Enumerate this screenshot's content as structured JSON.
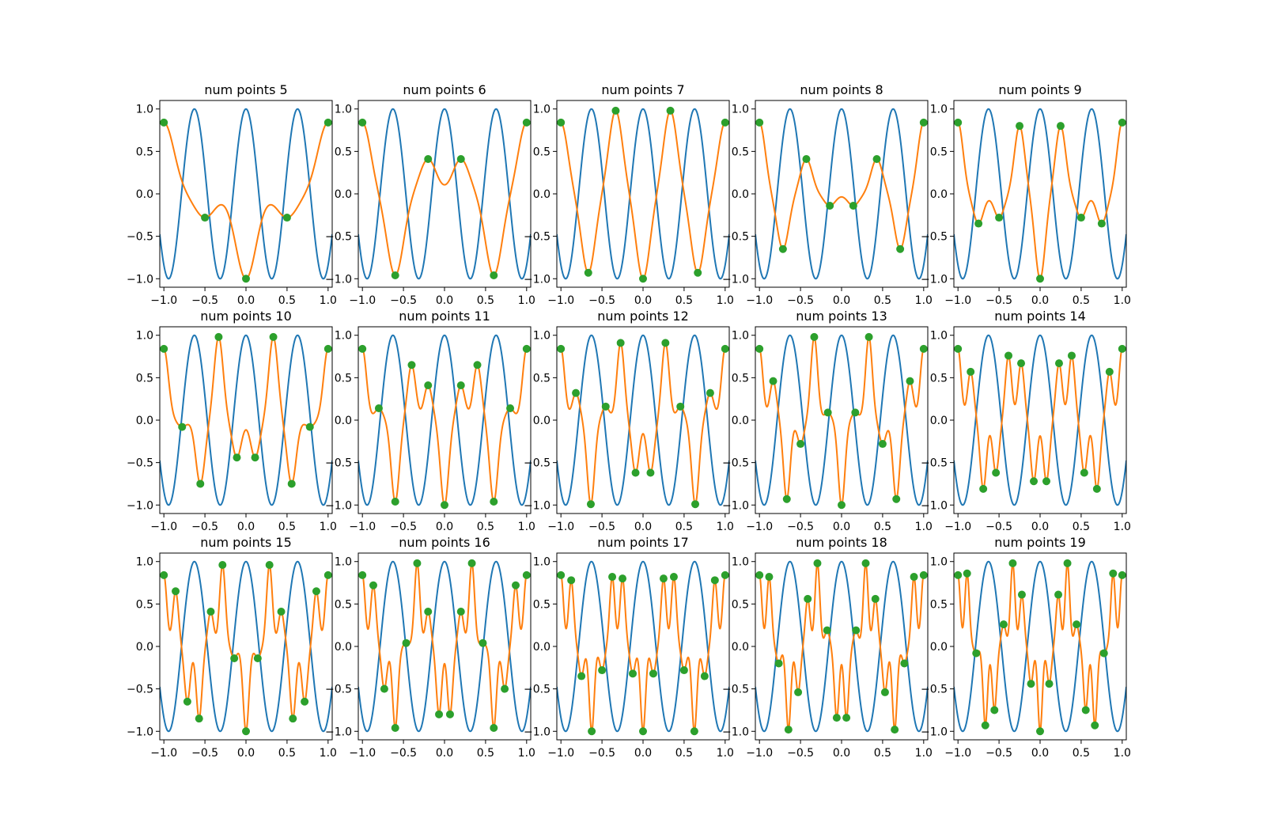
{
  "colors": {
    "target_function": "#1f77b4",
    "interpolant": "#ff7f0e",
    "samples": "#2ca02c",
    "axes": "#000000",
    "background": "#ffffff"
  },
  "chart_data": [
    {
      "type": "line",
      "title": "num points 5",
      "series": [
        {
          "kind": "target-function"
        },
        {
          "kind": "interpolant"
        },
        {
          "kind": "sample-points"
        }
      ],
      "samples": {
        "x": [
          -1,
          -0.5,
          0,
          0.5,
          1
        ],
        "y": [
          0.84,
          -0.28,
          -1,
          -0.28,
          0.84
        ]
      },
      "xlim": [
        -1.05,
        1.05
      ],
      "ylim": [
        -1.1,
        1.1
      ],
      "xticks": [
        "−1.0",
        "−0.5",
        "0.0",
        "0.5",
        "1.0"
      ],
      "yticks": [
        "−1.0",
        "−0.5",
        "0.0",
        "0.5",
        "1.0"
      ]
    },
    {
      "type": "line",
      "title": "num points 6",
      "series": [
        {
          "kind": "target-function"
        },
        {
          "kind": "interpolant"
        },
        {
          "kind": "sample-points"
        }
      ],
      "samples": {
        "x": [
          -1,
          -0.6,
          -0.2,
          0.2,
          0.6,
          1
        ],
        "y": [
          0.84,
          -0.96,
          0.41,
          0.41,
          -0.96,
          0.84
        ]
      },
      "xlim": [
        -1.05,
        1.05
      ],
      "ylim": [
        -1.1,
        1.1
      ],
      "xticks": [
        "−1.0",
        "−0.5",
        "0.0",
        "0.5",
        "1.0"
      ],
      "yticks": [
        "−1.0",
        "−0.5",
        "0.0",
        "0.5",
        "1.0"
      ]
    },
    {
      "type": "line",
      "title": "num points 7",
      "series": [
        {
          "kind": "target-function"
        },
        {
          "kind": "interpolant"
        },
        {
          "kind": "sample-points"
        }
      ],
      "samples": {
        "x": [
          -1,
          -0.667,
          -0.333,
          0,
          0.333,
          0.667,
          1
        ],
        "y": [
          0.84,
          -0.93,
          0.98,
          -1,
          0.98,
          -0.93,
          0.84
        ]
      },
      "xlim": [
        -1.05,
        1.05
      ],
      "ylim": [
        -1.1,
        1.1
      ],
      "xticks": [
        "−1.0",
        "−0.5",
        "0.0",
        "0.5",
        "1.0"
      ],
      "yticks": [
        "−1.0",
        "−0.5",
        "0.0",
        "0.5",
        "1.0"
      ]
    },
    {
      "type": "line",
      "title": "num points 8",
      "series": [
        {
          "kind": "target-function"
        },
        {
          "kind": "interpolant"
        },
        {
          "kind": "sample-points"
        }
      ],
      "samples": {
        "x": [
          -1,
          -0.714,
          -0.429,
          -0.143,
          0.143,
          0.429,
          0.714,
          1
        ],
        "y": [
          0.84,
          -0.65,
          0.41,
          -0.14,
          -0.14,
          0.41,
          -0.65,
          0.84
        ]
      },
      "xlim": [
        -1.05,
        1.05
      ],
      "ylim": [
        -1.1,
        1.1
      ],
      "xticks": [
        "−1.0",
        "−0.5",
        "0.0",
        "0.5",
        "1.0"
      ],
      "yticks": [
        "−1.0",
        "−0.5",
        "0.0",
        "0.5",
        "1.0"
      ]
    },
    {
      "type": "line",
      "title": "num points 9",
      "series": [
        {
          "kind": "target-function"
        },
        {
          "kind": "interpolant"
        },
        {
          "kind": "sample-points"
        }
      ],
      "samples": {
        "x": [
          -1,
          -0.75,
          -0.5,
          -0.25,
          0,
          0.25,
          0.5,
          0.75,
          1
        ],
        "y": [
          0.84,
          -0.35,
          -0.28,
          0.8,
          -1,
          0.8,
          -0.28,
          -0.35,
          0.84
        ]
      },
      "xlim": [
        -1.05,
        1.05
      ],
      "ylim": [
        -1.1,
        1.1
      ],
      "xticks": [
        "−1.0",
        "−0.5",
        "0.0",
        "0.5",
        "1.0"
      ],
      "yticks": [
        "−1.0",
        "−0.5",
        "0.0",
        "0.5",
        "1.0"
      ]
    },
    {
      "type": "line",
      "title": "num points 10",
      "series": [
        {
          "kind": "target-function"
        },
        {
          "kind": "interpolant"
        },
        {
          "kind": "sample-points"
        }
      ],
      "samples": {
        "x": [
          -1,
          -0.778,
          -0.556,
          -0.333,
          -0.111,
          0.111,
          0.333,
          0.556,
          0.778,
          1
        ],
        "y": [
          0.84,
          -0.08,
          -0.75,
          0.98,
          -0.44,
          -0.44,
          0.98,
          -0.75,
          -0.08,
          0.84
        ]
      },
      "xlim": [
        -1.05,
        1.05
      ],
      "ylim": [
        -1.1,
        1.1
      ],
      "xticks": [
        "−1.0",
        "−0.5",
        "0.0",
        "0.5",
        "1.0"
      ],
      "yticks": [
        "−1.0",
        "−0.5",
        "0.0",
        "0.5",
        "1.0"
      ]
    },
    {
      "type": "line",
      "title": "num points 11",
      "series": [
        {
          "kind": "target-function"
        },
        {
          "kind": "interpolant"
        },
        {
          "kind": "sample-points"
        }
      ],
      "samples": {
        "x": [
          -1,
          -0.8,
          -0.6,
          -0.4,
          -0.2,
          0,
          0.2,
          0.4,
          0.6,
          0.8,
          1
        ],
        "y": [
          0.84,
          0.14,
          -0.96,
          0.65,
          0.41,
          -1,
          0.41,
          0.65,
          -0.96,
          0.14,
          0.84
        ]
      },
      "xlim": [
        -1.05,
        1.05
      ],
      "ylim": [
        -1.1,
        1.1
      ],
      "xticks": [
        "−1.0",
        "−0.5",
        "0.0",
        "0.5",
        "1.0"
      ],
      "yticks": [
        "−1.0",
        "−0.5",
        "0.0",
        "0.5",
        "1.0"
      ]
    },
    {
      "type": "line",
      "title": "num points 12",
      "series": [
        {
          "kind": "target-function"
        },
        {
          "kind": "interpolant"
        },
        {
          "kind": "sample-points"
        }
      ],
      "samples": {
        "x": [
          -1,
          -0.818,
          -0.636,
          -0.455,
          -0.273,
          -0.091,
          0.091,
          0.273,
          0.455,
          0.636,
          0.818,
          1
        ],
        "y": [
          0.84,
          0.32,
          -0.99,
          0.16,
          0.91,
          -0.62,
          -0.62,
          0.91,
          0.16,
          -0.99,
          0.32,
          0.84
        ]
      },
      "xlim": [
        -1.05,
        1.05
      ],
      "ylim": [
        -1.1,
        1.1
      ],
      "xticks": [
        "−1.0",
        "−0.5",
        "0.0",
        "0.5",
        "1.0"
      ],
      "yticks": [
        "−1.0",
        "−0.5",
        "0.0",
        "0.5",
        "1.0"
      ]
    },
    {
      "type": "line",
      "title": "num points 13",
      "series": [
        {
          "kind": "target-function"
        },
        {
          "kind": "interpolant"
        },
        {
          "kind": "sample-points"
        }
      ],
      "samples": {
        "x": [
          -1,
          -0.833,
          -0.667,
          -0.5,
          -0.333,
          -0.167,
          0,
          0.167,
          0.333,
          0.5,
          0.667,
          0.833,
          1
        ],
        "y": [
          0.84,
          0.46,
          -0.93,
          -0.28,
          0.98,
          0.09,
          -1,
          0.09,
          0.98,
          -0.28,
          -0.93,
          0.46,
          0.84
        ]
      },
      "xlim": [
        -1.05,
        1.05
      ],
      "ylim": [
        -1.1,
        1.1
      ],
      "xticks": [
        "−1.0",
        "−0.5",
        "0.0",
        "0.5",
        "1.0"
      ],
      "yticks": [
        "−1.0",
        "−0.5",
        "0.0",
        "0.5",
        "1.0"
      ]
    },
    {
      "type": "line",
      "title": "num points 14",
      "series": [
        {
          "kind": "target-function"
        },
        {
          "kind": "interpolant"
        },
        {
          "kind": "sample-points"
        }
      ],
      "samples": {
        "x": [
          -1,
          -0.846,
          -0.692,
          -0.538,
          -0.385,
          -0.231,
          -0.077,
          0.077,
          0.231,
          0.385,
          0.538,
          0.692,
          0.846,
          1
        ],
        "y": [
          0.84,
          0.57,
          -0.81,
          -0.62,
          0.76,
          0.67,
          -0.72,
          -0.72,
          0.67,
          0.76,
          -0.62,
          -0.81,
          0.57,
          0.84
        ]
      },
      "xlim": [
        -1.05,
        1.05
      ],
      "ylim": [
        -1.1,
        1.1
      ],
      "xticks": [
        "−1.0",
        "−0.5",
        "0.0",
        "0.5",
        "1.0"
      ],
      "yticks": [
        "−1.0",
        "−0.5",
        "0.0",
        "0.5",
        "1.0"
      ]
    },
    {
      "type": "line",
      "title": "num points 15",
      "series": [
        {
          "kind": "target-function"
        },
        {
          "kind": "interpolant"
        },
        {
          "kind": "sample-points"
        }
      ],
      "samples": {
        "x": [
          -1,
          -0.857,
          -0.714,
          -0.571,
          -0.429,
          -0.286,
          -0.143,
          0,
          0.143,
          0.286,
          0.429,
          0.571,
          0.714,
          0.857,
          1
        ],
        "y": [
          0.84,
          0.65,
          -0.65,
          -0.85,
          0.41,
          0.96,
          -0.14,
          -1,
          -0.14,
          0.96,
          0.41,
          -0.85,
          -0.65,
          0.65,
          0.84
        ]
      },
      "xlim": [
        -1.05,
        1.05
      ],
      "ylim": [
        -1.1,
        1.1
      ],
      "xticks": [
        "−1.0",
        "−0.5",
        "0.0",
        "0.5",
        "1.0"
      ],
      "yticks": [
        "−1.0",
        "−0.5",
        "0.0",
        "0.5",
        "1.0"
      ]
    },
    {
      "type": "line",
      "title": "num points 16",
      "series": [
        {
          "kind": "target-function"
        },
        {
          "kind": "interpolant"
        },
        {
          "kind": "sample-points"
        }
      ],
      "samples": {
        "x": [
          -1,
          -0.867,
          -0.733,
          -0.6,
          -0.467,
          -0.333,
          -0.2,
          -0.067,
          0.067,
          0.2,
          0.333,
          0.467,
          0.6,
          0.733,
          0.867,
          1
        ],
        "y": [
          0.84,
          0.72,
          -0.5,
          -0.96,
          0.04,
          0.98,
          0.41,
          -0.8,
          -0.8,
          0.41,
          0.98,
          0.04,
          -0.96,
          -0.5,
          0.72,
          0.84
        ]
      },
      "xlim": [
        -1.05,
        1.05
      ],
      "ylim": [
        -1.1,
        1.1
      ],
      "xticks": [
        "−1.0",
        "−0.5",
        "0.0",
        "0.5",
        "1.0"
      ],
      "yticks": [
        "−1.0",
        "−0.5",
        "0.0",
        "0.5",
        "1.0"
      ]
    },
    {
      "type": "line",
      "title": "num points 17",
      "series": [
        {
          "kind": "target-function"
        },
        {
          "kind": "interpolant"
        },
        {
          "kind": "sample-points"
        }
      ],
      "samples": {
        "x": [
          -1,
          -0.875,
          -0.75,
          -0.625,
          -0.5,
          -0.375,
          -0.25,
          -0.125,
          0,
          0.125,
          0.25,
          0.375,
          0.5,
          0.625,
          0.75,
          0.875,
          1
        ],
        "y": [
          0.84,
          0.78,
          -0.35,
          -1,
          -0.28,
          0.82,
          0.8,
          -0.32,
          -1,
          -0.32,
          0.8,
          0.82,
          -0.28,
          -1,
          -0.35,
          0.78,
          0.84
        ]
      },
      "xlim": [
        -1.05,
        1.05
      ],
      "ylim": [
        -1.1,
        1.1
      ],
      "xticks": [
        "−1.0",
        "−0.5",
        "0.0",
        "0.5",
        "1.0"
      ],
      "yticks": [
        "−1.0",
        "−0.5",
        "0.0",
        "0.5",
        "1.0"
      ]
    },
    {
      "type": "line",
      "title": "num points 18",
      "series": [
        {
          "kind": "target-function"
        },
        {
          "kind": "interpolant"
        },
        {
          "kind": "sample-points"
        }
      ],
      "samples": {
        "x": [
          -1,
          -0.882,
          -0.765,
          -0.647,
          -0.529,
          -0.412,
          -0.294,
          -0.176,
          -0.059,
          0.059,
          0.176,
          0.294,
          0.412,
          0.529,
          0.647,
          0.765,
          0.882,
          1
        ],
        "y": [
          0.84,
          0.82,
          -0.2,
          -0.98,
          -0.54,
          0.56,
          0.98,
          0.19,
          -0.84,
          -0.84,
          0.19,
          0.98,
          0.56,
          -0.54,
          -0.98,
          -0.2,
          0.82,
          0.84
        ]
      },
      "xlim": [
        -1.05,
        1.05
      ],
      "ylim": [
        -1.1,
        1.1
      ],
      "xticks": [
        "−1.0",
        "−0.5",
        "0.0",
        "0.5",
        "1.0"
      ],
      "yticks": [
        "−1.0",
        "−0.5",
        "0.0",
        "0.5",
        "1.0"
      ]
    },
    {
      "type": "line",
      "title": "num points 19",
      "series": [
        {
          "kind": "target-function"
        },
        {
          "kind": "interpolant"
        },
        {
          "kind": "sample-points"
        }
      ],
      "samples": {
        "x": [
          -1,
          -0.889,
          -0.778,
          -0.667,
          -0.556,
          -0.444,
          -0.333,
          -0.222,
          -0.111,
          0,
          0.111,
          0.222,
          0.333,
          0.444,
          0.556,
          0.667,
          0.778,
          0.889,
          1
        ],
        "y": [
          0.84,
          0.86,
          -0.08,
          -0.93,
          -0.75,
          0.26,
          0.98,
          0.61,
          -0.44,
          -1,
          -0.44,
          0.61,
          0.98,
          0.26,
          -0.75,
          -0.93,
          -0.08,
          0.86,
          0.84
        ]
      },
      "xlim": [
        -1.05,
        1.05
      ],
      "ylim": [
        -1.1,
        1.1
      ],
      "xticks": [
        "−1.0",
        "−0.5",
        "0.0",
        "0.5",
        "1.0"
      ],
      "yticks": [
        "−1.0",
        "−0.5",
        "0.0",
        "0.5",
        "1.0"
      ]
    }
  ]
}
